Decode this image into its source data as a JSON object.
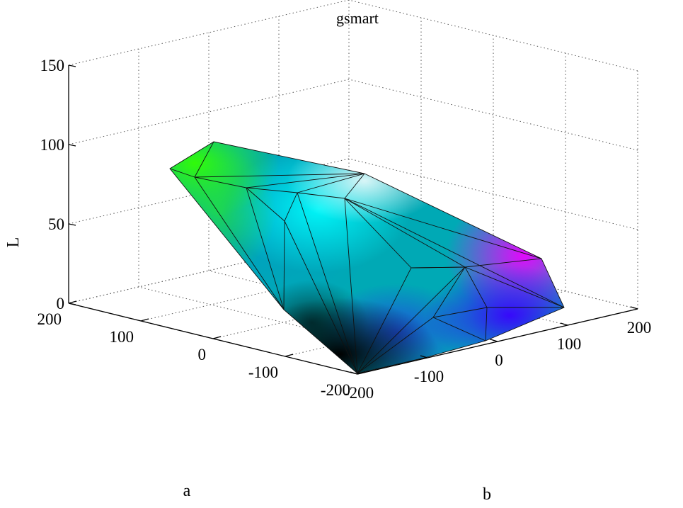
{
  "chart_data": {
    "type": "3d-surface",
    "title": "gsmart",
    "xlabel": "a",
    "ylabel": "b",
    "zlabel": "L",
    "x_ticks": [
      "200",
      "100",
      "0",
      "-100",
      "-200"
    ],
    "y_ticks": [
      "-200",
      "-100",
      "0",
      "100",
      "200"
    ],
    "z_ticks": [
      "0",
      "50",
      "100",
      "150"
    ],
    "xlim": [
      -200,
      200
    ],
    "ylim": [
      -200,
      200
    ],
    "zlim": [
      0,
      150
    ],
    "grid": true,
    "surface": "sRGB-like gamut hull in CIELAB space, faceted with black triangle edges, colored by the Lab color at each vertex"
  }
}
